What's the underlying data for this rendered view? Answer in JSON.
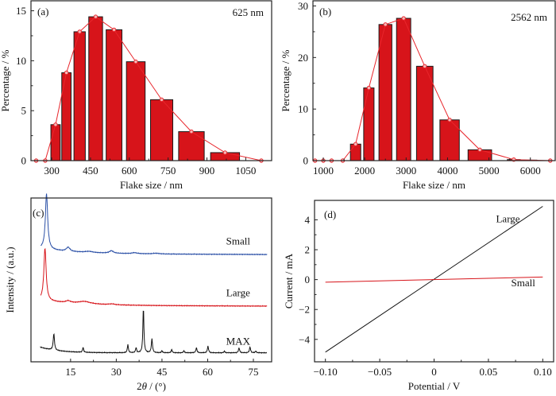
{
  "chart_data": [
    {
      "id": "a",
      "type": "bar",
      "panel_label": "(a)",
      "annotation": "625 nm",
      "xlabel": "Flake size / nm",
      "ylabel": "Percentage / %",
      "xlim": [
        220,
        1150
      ],
      "ylim": [
        0,
        16
      ],
      "xticks": [
        300,
        450,
        600,
        750,
        900,
        1050
      ],
      "yticks": [
        0,
        5,
        10,
        15
      ],
      "bar_color": "#d7141a",
      "line_color": "#e8262c",
      "bars": [
        {
          "x": 315,
          "value": 3.6
        },
        {
          "x": 357,
          "value": 8.8
        },
        {
          "x": 408,
          "value": 12.9
        },
        {
          "x": 470,
          "value": 14.4
        },
        {
          "x": 541,
          "value": 13.1
        },
        {
          "x": 625,
          "value": 9.9
        },
        {
          "x": 725,
          "value": 6.1
        },
        {
          "x": 840,
          "value": 2.9
        },
        {
          "x": 970,
          "value": 0.8
        }
      ],
      "line_points": [
        {
          "x": 240,
          "value": 0
        },
        {
          "x": 275,
          "value": 0
        },
        {
          "x": 315,
          "value": 3.6
        },
        {
          "x": 357,
          "value": 8.8
        },
        {
          "x": 408,
          "value": 12.9
        },
        {
          "x": 470,
          "value": 14.4
        },
        {
          "x": 541,
          "value": 13.1
        },
        {
          "x": 625,
          "value": 9.9
        },
        {
          "x": 725,
          "value": 6.1
        },
        {
          "x": 840,
          "value": 2.9
        },
        {
          "x": 970,
          "value": 0.8
        },
        {
          "x": 1110,
          "value": 0
        }
      ]
    },
    {
      "id": "b",
      "type": "bar",
      "panel_label": "(b)",
      "annotation": "2562 nm",
      "xlabel": "Flake size / nm",
      "ylabel": "Percentage / %",
      "xlim": [
        750,
        6600
      ],
      "ylim": [
        0,
        31
      ],
      "xticks": [
        1000,
        2000,
        3000,
        4000,
        5000,
        6000
      ],
      "yticks": [
        0,
        10,
        20,
        30
      ],
      "bar_color": "#d7141a",
      "line_color": "#e8262c",
      "bars": [
        {
          "x": 1780,
          "value": 3.2
        },
        {
          "x": 2100,
          "value": 14.1
        },
        {
          "x": 2500,
          "value": 26.4
        },
        {
          "x": 2940,
          "value": 27.6
        },
        {
          "x": 3450,
          "value": 18.3
        },
        {
          "x": 4050,
          "value": 7.9
        },
        {
          "x": 4780,
          "value": 2.1
        },
        {
          "x": 5600,
          "value": 0.2
        },
        {
          "x": 6000,
          "value": 0.1
        }
      ],
      "line_points": [
        {
          "x": 800,
          "value": 0
        },
        {
          "x": 1000,
          "value": 0
        },
        {
          "x": 1200,
          "value": 0
        },
        {
          "x": 1470,
          "value": 0
        },
        {
          "x": 1780,
          "value": 3.2
        },
        {
          "x": 2100,
          "value": 14.1
        },
        {
          "x": 2500,
          "value": 26.4
        },
        {
          "x": 2940,
          "value": 27.6
        },
        {
          "x": 3450,
          "value": 18.3
        },
        {
          "x": 4050,
          "value": 7.9
        },
        {
          "x": 4780,
          "value": 2.1
        },
        {
          "x": 5600,
          "value": 0.2
        },
        {
          "x": 6480,
          "value": 0
        }
      ]
    },
    {
      "id": "c",
      "type": "line",
      "panel_label": "(c)",
      "xlabel": "2θ / (°)",
      "ylabel": "Intensity / (a.u.)",
      "xlim": [
        2,
        81
      ],
      "ylim": [
        0,
        10
      ],
      "xticks": [
        15,
        30,
        45,
        60,
        75
      ],
      "yticks": [],
      "series": [
        {
          "name": "Small",
          "color": "#2a4fa6",
          "baseline": 6.6,
          "peaks": [
            {
              "x": 7.1,
              "height": 3.4,
              "width": 0.45
            },
            {
              "x": 14.2,
              "height": 0.25,
              "width": 0.7
            },
            {
              "x": 21,
              "height": 0.07,
              "width": 1.5
            },
            {
              "x": 28.4,
              "height": 0.15,
              "width": 0.8
            },
            {
              "x": 36,
              "height": 0.06,
              "width": 1.0
            },
            {
              "x": 43,
              "height": 0.04,
              "width": 1.2
            }
          ]
        },
        {
          "name": "Large",
          "color": "#d7141a",
          "baseline": 3.45,
          "peaks": [
            {
              "x": 6.6,
              "height": 3.2,
              "width": 0.45
            },
            {
              "x": 14.2,
              "height": 0.12,
              "width": 0.9
            },
            {
              "x": 19.5,
              "height": 0.15,
              "width": 2.5
            },
            {
              "x": 28.5,
              "height": 0.05,
              "width": 1.2
            }
          ]
        },
        {
          "name": "MAX",
          "color": "#111111",
          "baseline": 0.55,
          "peaks": [
            {
              "x": 9.5,
              "height": 1.0,
              "width": 0.25
            },
            {
              "x": 19.1,
              "height": 0.3,
              "width": 0.2
            },
            {
              "x": 33.8,
              "height": 0.5,
              "width": 0.2
            },
            {
              "x": 36.5,
              "height": 0.3,
              "width": 0.2
            },
            {
              "x": 38.9,
              "height": 2.75,
              "width": 0.2
            },
            {
              "x": 41.7,
              "height": 0.85,
              "width": 0.22
            },
            {
              "x": 45,
              "height": 0.12,
              "width": 0.2
            },
            {
              "x": 48.2,
              "height": 0.2,
              "width": 0.2
            },
            {
              "x": 52.2,
              "height": 0.12,
              "width": 0.2
            },
            {
              "x": 56.3,
              "height": 0.3,
              "width": 0.22
            },
            {
              "x": 60.1,
              "height": 0.4,
              "width": 0.22
            },
            {
              "x": 65.5,
              "height": 0.1,
              "width": 0.2
            },
            {
              "x": 70.3,
              "height": 0.3,
              "width": 0.22
            },
            {
              "x": 73.9,
              "height": 0.35,
              "width": 0.22
            },
            {
              "x": 75.8,
              "height": 0.1,
              "width": 0.2
            }
          ]
        }
      ],
      "labels": [
        {
          "text": "Small",
          "x": 70,
          "y": 7.15
        },
        {
          "text": "Large",
          "x": 70,
          "y": 4.0
        },
        {
          "text": "MAX",
          "x": 70,
          "y": 1.05
        }
      ]
    },
    {
      "id": "d",
      "type": "line",
      "panel_label": "(d)",
      "xlabel": "Potential / V",
      "ylabel": "Current / mA",
      "xlim": [
        -0.11,
        0.11
      ],
      "ylim": [
        -5.5,
        5.3
      ],
      "xticks": [
        -0.1,
        -0.05,
        0,
        0.05,
        0.1
      ],
      "xtick_labels": [
        "−0.10",
        "−0.05",
        "0",
        "0.05",
        "0.10"
      ],
      "yticks": [
        -4,
        -2,
        0,
        2,
        4
      ],
      "ytick_labels": [
        "−4",
        "−2",
        "0",
        "2",
        "4"
      ],
      "series": [
        {
          "name": "Large",
          "color": "#111111",
          "x": [
            -0.1,
            0.1
          ],
          "y": [
            -4.85,
            4.9
          ]
        },
        {
          "name": "Small",
          "color": "#d7141a",
          "x": [
            -0.1,
            0.1
          ],
          "y": [
            -0.17,
            0.17
          ]
        }
      ],
      "labels": [
        {
          "text": "Large",
          "x": 0.068,
          "y": 3.85
        },
        {
          "text": "Small",
          "x": 0.082,
          "y": -0.45
        }
      ]
    }
  ]
}
